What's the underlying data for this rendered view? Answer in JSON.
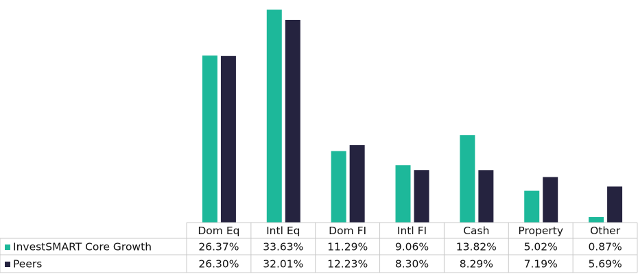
{
  "chart_data": {
    "type": "bar",
    "categories": [
      "Dom Eq",
      "Intl Eq",
      "Dom FI",
      "Intl FI",
      "Cash",
      "Property",
      "Other"
    ],
    "series": [
      {
        "name": "InvestSMART Core Growth",
        "color": "#1db89a",
        "values": [
          26.37,
          33.63,
          11.29,
          9.06,
          13.82,
          5.02,
          0.87
        ],
        "value_labels": [
          "26.37%",
          "33.63%",
          "11.29%",
          "9.06%",
          "13.82%",
          "5.02%",
          "0.87%"
        ]
      },
      {
        "name": "Peers",
        "color": "#25233f",
        "values": [
          26.3,
          32.01,
          12.23,
          8.3,
          8.29,
          7.19,
          5.69
        ],
        "value_labels": [
          "26.30%",
          "32.01%",
          "12.23%",
          "8.30%",
          "8.29%",
          "7.19%",
          "5.69%"
        ]
      }
    ]
  }
}
